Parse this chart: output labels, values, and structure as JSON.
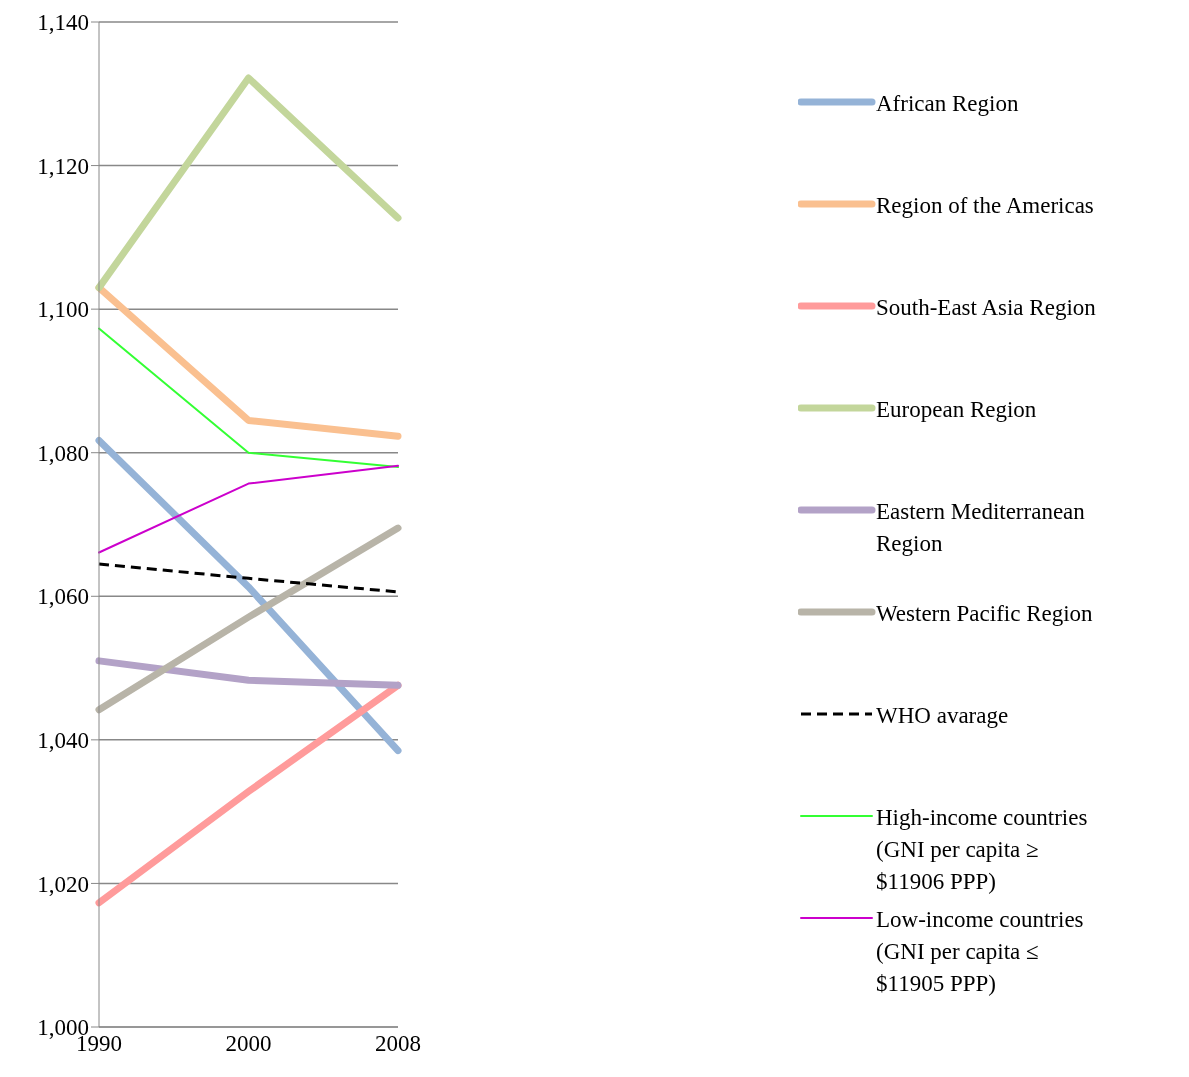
{
  "chart_data": {
    "type": "line",
    "categories": [
      "1990",
      "2000",
      "2008"
    ],
    "ylim": [
      1000,
      1140
    ],
    "yticks": [
      {
        "value": 1000,
        "label": "1,000"
      },
      {
        "value": 1020,
        "label": "1,020"
      },
      {
        "value": 1040,
        "label": "1,040"
      },
      {
        "value": 1060,
        "label": "1,060"
      },
      {
        "value": 1080,
        "label": "1,080"
      },
      {
        "value": 1100,
        "label": "1,100"
      },
      {
        "value": 1120,
        "label": "1,120"
      },
      {
        "value": 1140,
        "label": "1,140"
      }
    ],
    "grid": "y",
    "legend": "right",
    "marker": "none",
    "series": [
      {
        "name": "African Region",
        "color": "#95b3d7",
        "values": [
          1081.7,
          1061.3,
          1038.5
        ]
      },
      {
        "name": "Region of the Americas",
        "color": "#fac090",
        "values": [
          1103,
          1084.5,
          1082.3
        ]
      },
      {
        "name": "South-East Asia Region",
        "color": "#ff9b9b",
        "values": [
          1017.3,
          1032.8,
          1047.6
        ]
      },
      {
        "name": "European Region",
        "color": "#c3d69b",
        "values": [
          1103,
          1132.2,
          1112.7
        ]
      },
      {
        "name": "Eastern Mediterranean Region",
        "color": "#b3a2c7",
        "values": [
          1051,
          1048.3,
          1047.6
        ]
      },
      {
        "name": "Western Pacific Region",
        "color": "#b8b4a8",
        "values": [
          1044.2,
          1057.1,
          1069.5
        ]
      },
      {
        "name": "WHO avarage",
        "color": "#000000",
        "line_style": "dashed",
        "values": [
          1064.5,
          1062.5,
          1060.6
        ]
      },
      {
        "name": "High-income countries (GNI per capita ≥ $11906 PPP)",
        "color": "#33ff33",
        "values": [
          1097.3,
          1080,
          1078
        ]
      },
      {
        "name": "Low-income countries (GNI per capita ≤ $11905 PPP)",
        "color": "#cc00cc",
        "values": [
          1066.1,
          1075.7,
          1078.2
        ]
      }
    ]
  }
}
